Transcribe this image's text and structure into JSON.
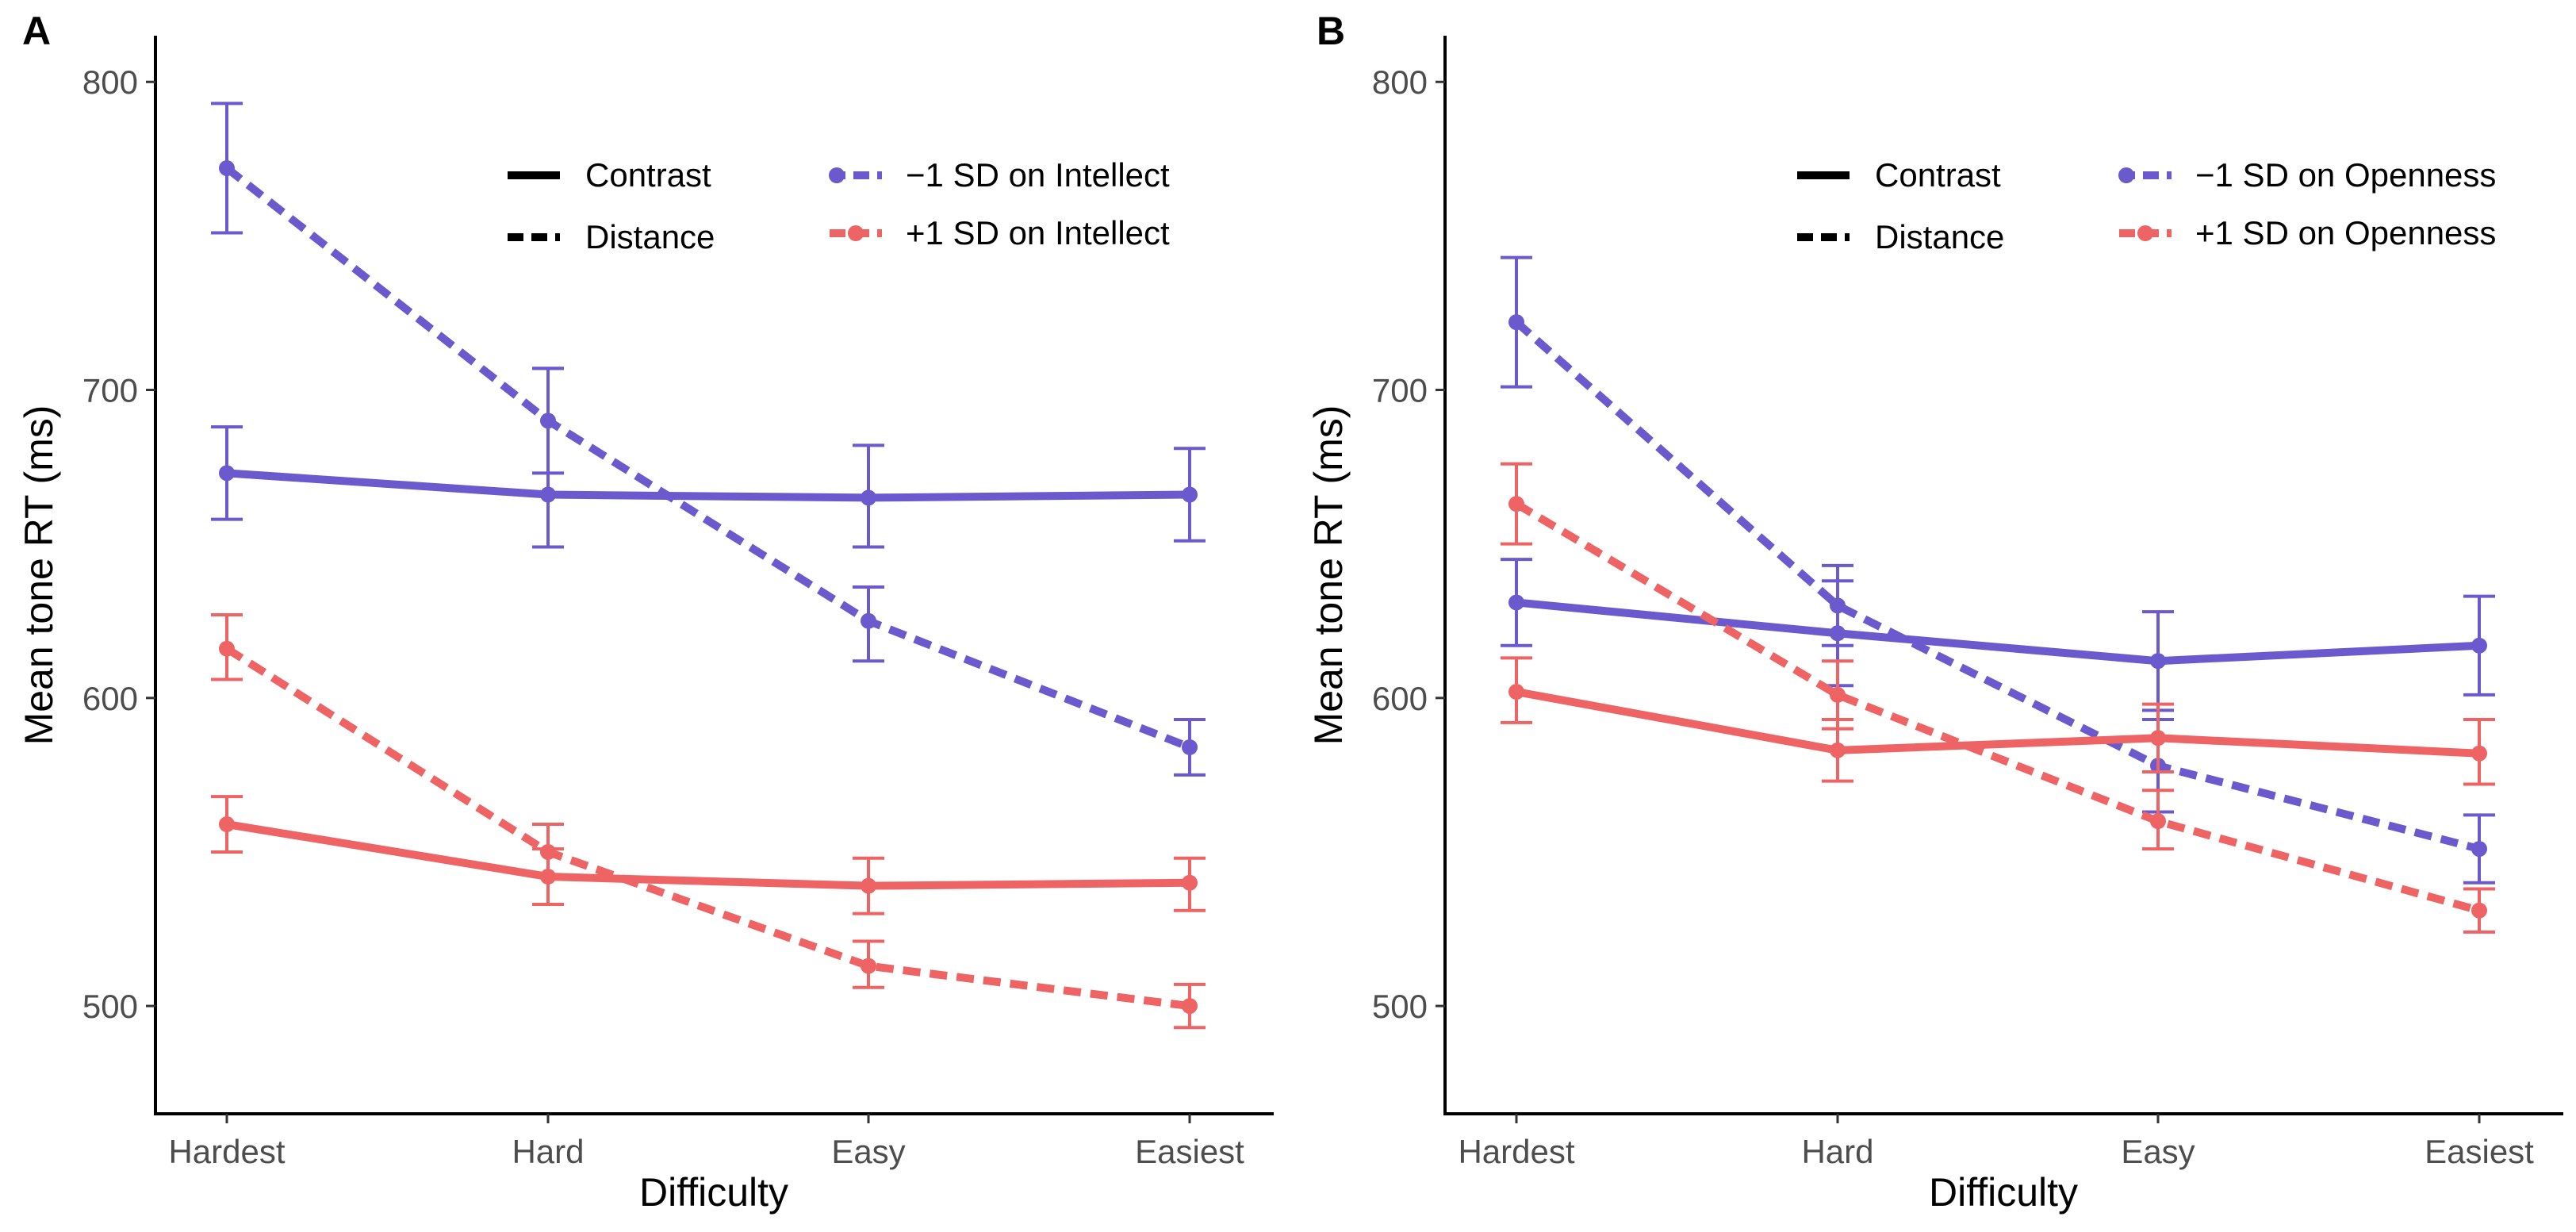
{
  "colors": {
    "low": "#6a5acd",
    "high": "#ee6363",
    "axis": "#000000",
    "tick_text": "#4d4d4d"
  },
  "chart_data": [
    {
      "type": "line",
      "panel": "A",
      "xlabel": "Difficulty",
      "ylabel": "Mean tone RT (ms)",
      "categories": [
        "Hardest",
        "Hard",
        "Easy",
        "Easiest"
      ],
      "ylim": [
        465,
        815
      ],
      "yticks": [
        500,
        600,
        700,
        800
      ],
      "legend_linetype": [
        {
          "label": "Contrast",
          "style": "solid"
        },
        {
          "label": "Distance",
          "style": "dashed"
        }
      ],
      "legend_color": [
        {
          "label": "−1 SD on Intellect",
          "color_key": "low"
        },
        {
          "label": "+1 SD on Intellect",
          "color_key": "high"
        }
      ],
      "series": [
        {
          "name": "Contrast, −1 SD on Intellect",
          "color_key": "low",
          "style": "solid",
          "values": [
            673,
            666,
            665,
            666
          ],
          "err_low": [
            658,
            649,
            649,
            651
          ],
          "err_high": [
            688,
            707,
            682,
            681
          ]
        },
        {
          "name": "Distance, −1 SD on Intellect",
          "color_key": "low",
          "style": "dashed",
          "values": [
            772,
            690,
            625,
            584
          ],
          "err_low": [
            751,
            673,
            612,
            575
          ],
          "err_high": [
            793,
            707,
            636,
            593
          ]
        },
        {
          "name": "Contrast, +1 SD on Intellect",
          "color_key": "high",
          "style": "solid",
          "values": [
            559,
            542,
            539,
            540
          ],
          "err_low": [
            550,
            533,
            530,
            531
          ],
          "err_high": [
            568,
            551,
            548,
            548
          ]
        },
        {
          "name": "Distance, +1 SD on Intellect",
          "color_key": "high",
          "style": "dashed",
          "values": [
            616,
            550,
            513,
            500
          ],
          "err_low": [
            606,
            542,
            506,
            493
          ],
          "err_high": [
            627,
            559,
            521,
            507
          ]
        }
      ]
    },
    {
      "type": "line",
      "panel": "B",
      "xlabel": "Difficulty",
      "ylabel": "Mean tone RT (ms)",
      "categories": [
        "Hardest",
        "Hard",
        "Easy",
        "Easiest"
      ],
      "ylim": [
        465,
        815
      ],
      "yticks": [
        500,
        600,
        700,
        800
      ],
      "legend_linetype": [
        {
          "label": "Contrast",
          "style": "solid"
        },
        {
          "label": "Distance",
          "style": "dashed"
        }
      ],
      "legend_color": [
        {
          "label": "−1 SD on Openness",
          "color_key": "low"
        },
        {
          "label": "+1 SD on Openness",
          "color_key": "high"
        }
      ],
      "series": [
        {
          "name": "Contrast, −1 SD on Openness",
          "color_key": "low",
          "style": "solid",
          "values": [
            631,
            621,
            612,
            617
          ],
          "err_low": [
            617,
            604,
            596,
            601
          ],
          "err_high": [
            645,
            638,
            628,
            633
          ]
        },
        {
          "name": "Distance, −1 SD on Openness",
          "color_key": "low",
          "style": "dashed",
          "values": [
            722,
            630,
            578,
            551
          ],
          "err_low": [
            701,
            617,
            563,
            540
          ],
          "err_high": [
            743,
            643,
            593,
            562
          ]
        },
        {
          "name": "Contrast, +1 SD on Openness",
          "color_key": "high",
          "style": "solid",
          "values": [
            602,
            583,
            587,
            582
          ],
          "err_low": [
            592,
            573,
            576,
            572
          ],
          "err_high": [
            613,
            593,
            598,
            593
          ]
        },
        {
          "name": "Distance, +1 SD on Openness",
          "color_key": "high",
          "style": "dashed",
          "values": [
            663,
            601,
            560,
            531
          ],
          "err_low": [
            650,
            590,
            551,
            524
          ],
          "err_high": [
            676,
            612,
            570,
            538
          ]
        }
      ]
    }
  ]
}
